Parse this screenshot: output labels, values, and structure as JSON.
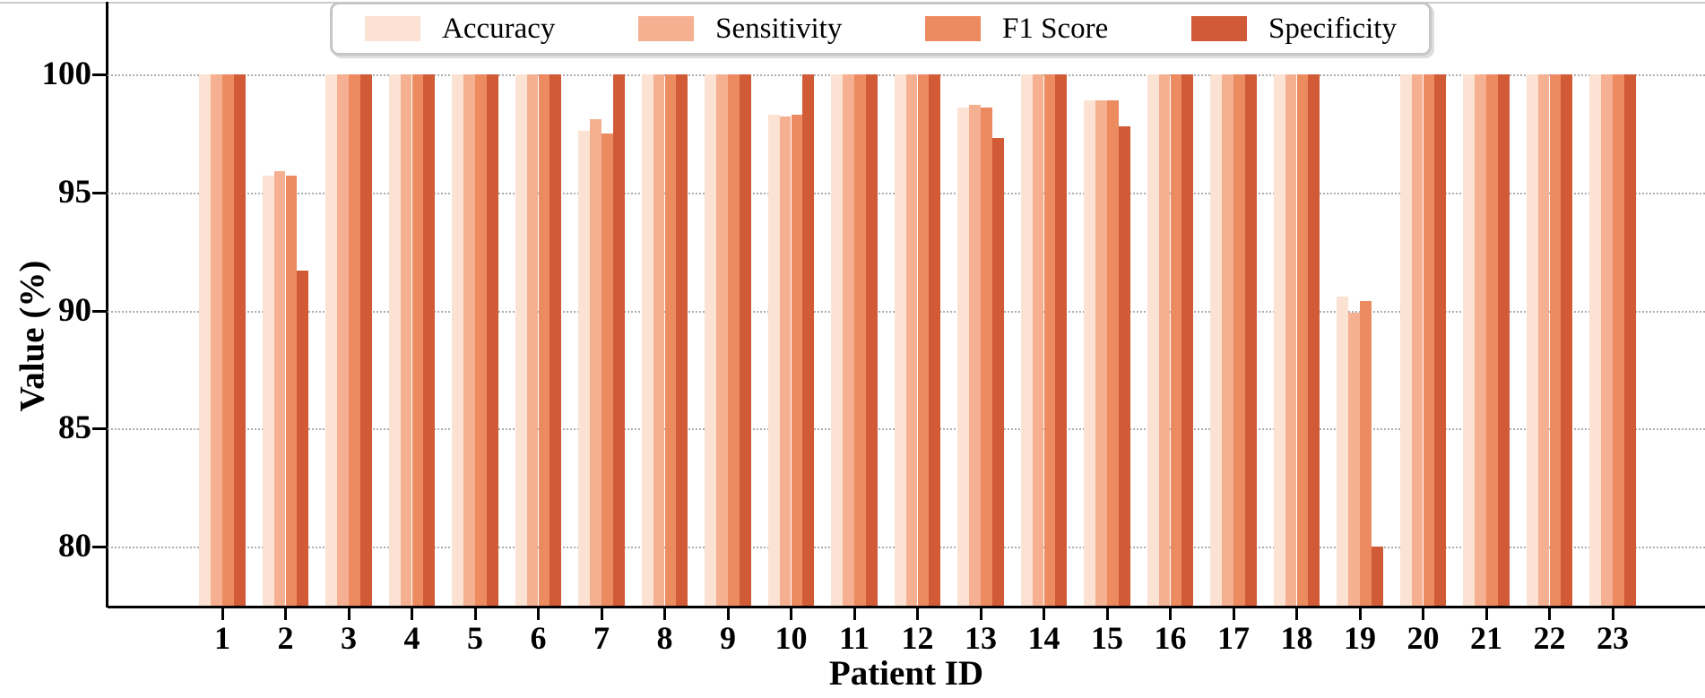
{
  "chart_data": {
    "type": "bar",
    "title": "",
    "xlabel": "Patient ID",
    "ylabel": "Value (%)",
    "categories": [
      "1",
      "2",
      "3",
      "4",
      "5",
      "6",
      "7",
      "8",
      "9",
      "10",
      "11",
      "12",
      "13",
      "14",
      "15",
      "16",
      "17",
      "18",
      "19",
      "20",
      "21",
      "22",
      "23"
    ],
    "series": [
      {
        "name": "Accuracy",
        "color": "#fbe2d2",
        "values": [
          100,
          95.7,
          100,
          100,
          100,
          100,
          97.6,
          100,
          100,
          98.3,
          100,
          100,
          98.6,
          100,
          98.9,
          100,
          100,
          100,
          90.6,
          100,
          100,
          100,
          100
        ]
      },
      {
        "name": "Sensitivity",
        "color": "#f5b092",
        "values": [
          100,
          95.9,
          100,
          100,
          100,
          100,
          98.1,
          100,
          100,
          98.2,
          100,
          100,
          98.7,
          100,
          98.9,
          100,
          100,
          100,
          89.9,
          100,
          100,
          100,
          100
        ]
      },
      {
        "name": "F1 Score",
        "color": "#ec8a60",
        "values": [
          100,
          95.7,
          100,
          100,
          100,
          100,
          97.5,
          100,
          100,
          98.3,
          100,
          100,
          98.6,
          100,
          98.9,
          100,
          100,
          100,
          90.4,
          100,
          100,
          100,
          100
        ]
      },
      {
        "name": "Specificity",
        "color": "#d05b36",
        "values": [
          100,
          91.7,
          100,
          100,
          100,
          100,
          100,
          100,
          100,
          100,
          100,
          100,
          97.3,
          100,
          97.8,
          100,
          100,
          100,
          80.0,
          100,
          100,
          100,
          100
        ]
      }
    ],
    "ylim": [
      77.5,
      100
    ],
    "yticks": [
      80,
      85,
      90,
      95,
      100
    ],
    "grid": "horizontal-dotted",
    "legend_position": "top-center"
  }
}
